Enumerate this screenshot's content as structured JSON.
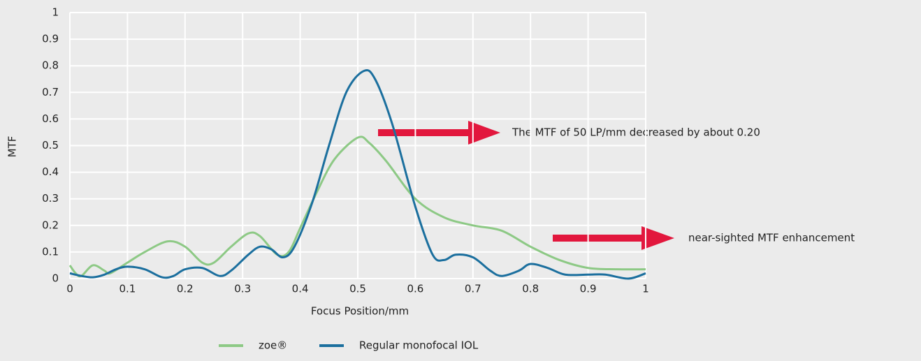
{
  "chart_data": {
    "type": "line",
    "x_label": "Focus Position/mm",
    "y_label": "MTF",
    "xlim": [
      0,
      1
    ],
    "xticks": [
      0,
      0.1,
      0.2,
      0.3,
      0.4,
      0.5,
      0.6,
      0.7,
      0.8,
      0.9,
      1
    ],
    "ylim": [
      0,
      1
    ],
    "yticks": [
      0,
      0.1,
      0.2,
      0.3,
      0.4,
      0.5,
      0.6,
      0.7,
      0.8,
      0.9,
      1
    ],
    "grid": true,
    "series": [
      {
        "name": "zoe®",
        "color": "#8dc985",
        "x": [
          0,
          0.01,
          0.02,
          0.04,
          0.06,
          0.07,
          0.1,
          0.13,
          0.17,
          0.2,
          0.23,
          0.25,
          0.28,
          0.31,
          0.33,
          0.36,
          0.38,
          0.4,
          0.43,
          0.46,
          0.5,
          0.52,
          0.55,
          0.6,
          0.65,
          0.7,
          0.75,
          0.8,
          0.85,
          0.9,
          0.95,
          1
        ],
        "values": [
          0.05,
          0.02,
          0.01,
          0.05,
          0.03,
          0.02,
          0.06,
          0.1,
          0.14,
          0.12,
          0.06,
          0.06,
          0.12,
          0.17,
          0.16,
          0.09,
          0.1,
          0.19,
          0.33,
          0.45,
          0.53,
          0.51,
          0.44,
          0.3,
          0.23,
          0.2,
          0.18,
          0.12,
          0.07,
          0.04,
          0.035,
          0.035
        ]
      },
      {
        "name": "Regular monofocal IOL",
        "color": "#1b6f9e",
        "x": [
          0,
          0.02,
          0.04,
          0.06,
          0.08,
          0.1,
          0.13,
          0.16,
          0.18,
          0.2,
          0.23,
          0.26,
          0.28,
          0.31,
          0.33,
          0.35,
          0.37,
          0.39,
          0.42,
          0.45,
          0.48,
          0.51,
          0.53,
          0.56,
          0.6,
          0.63,
          0.65,
          0.67,
          0.7,
          0.73,
          0.75,
          0.78,
          0.8,
          0.83,
          0.86,
          0.9,
          0.93,
          0.97,
          1
        ],
        "values": [
          0.02,
          0.01,
          0.005,
          0.015,
          0.035,
          0.045,
          0.035,
          0.005,
          0.01,
          0.035,
          0.04,
          0.01,
          0.03,
          0.09,
          0.12,
          0.11,
          0.08,
          0.12,
          0.28,
          0.5,
          0.7,
          0.78,
          0.75,
          0.58,
          0.27,
          0.09,
          0.07,
          0.09,
          0.08,
          0.03,
          0.01,
          0.03,
          0.055,
          0.04,
          0.015,
          0.015,
          0.015,
          0,
          0.02
        ]
      }
    ],
    "annotations": [
      "The MTF of 50 LP/mm decreased by about 0.20",
      "near-sighted MTF enhancement"
    ]
  }
}
